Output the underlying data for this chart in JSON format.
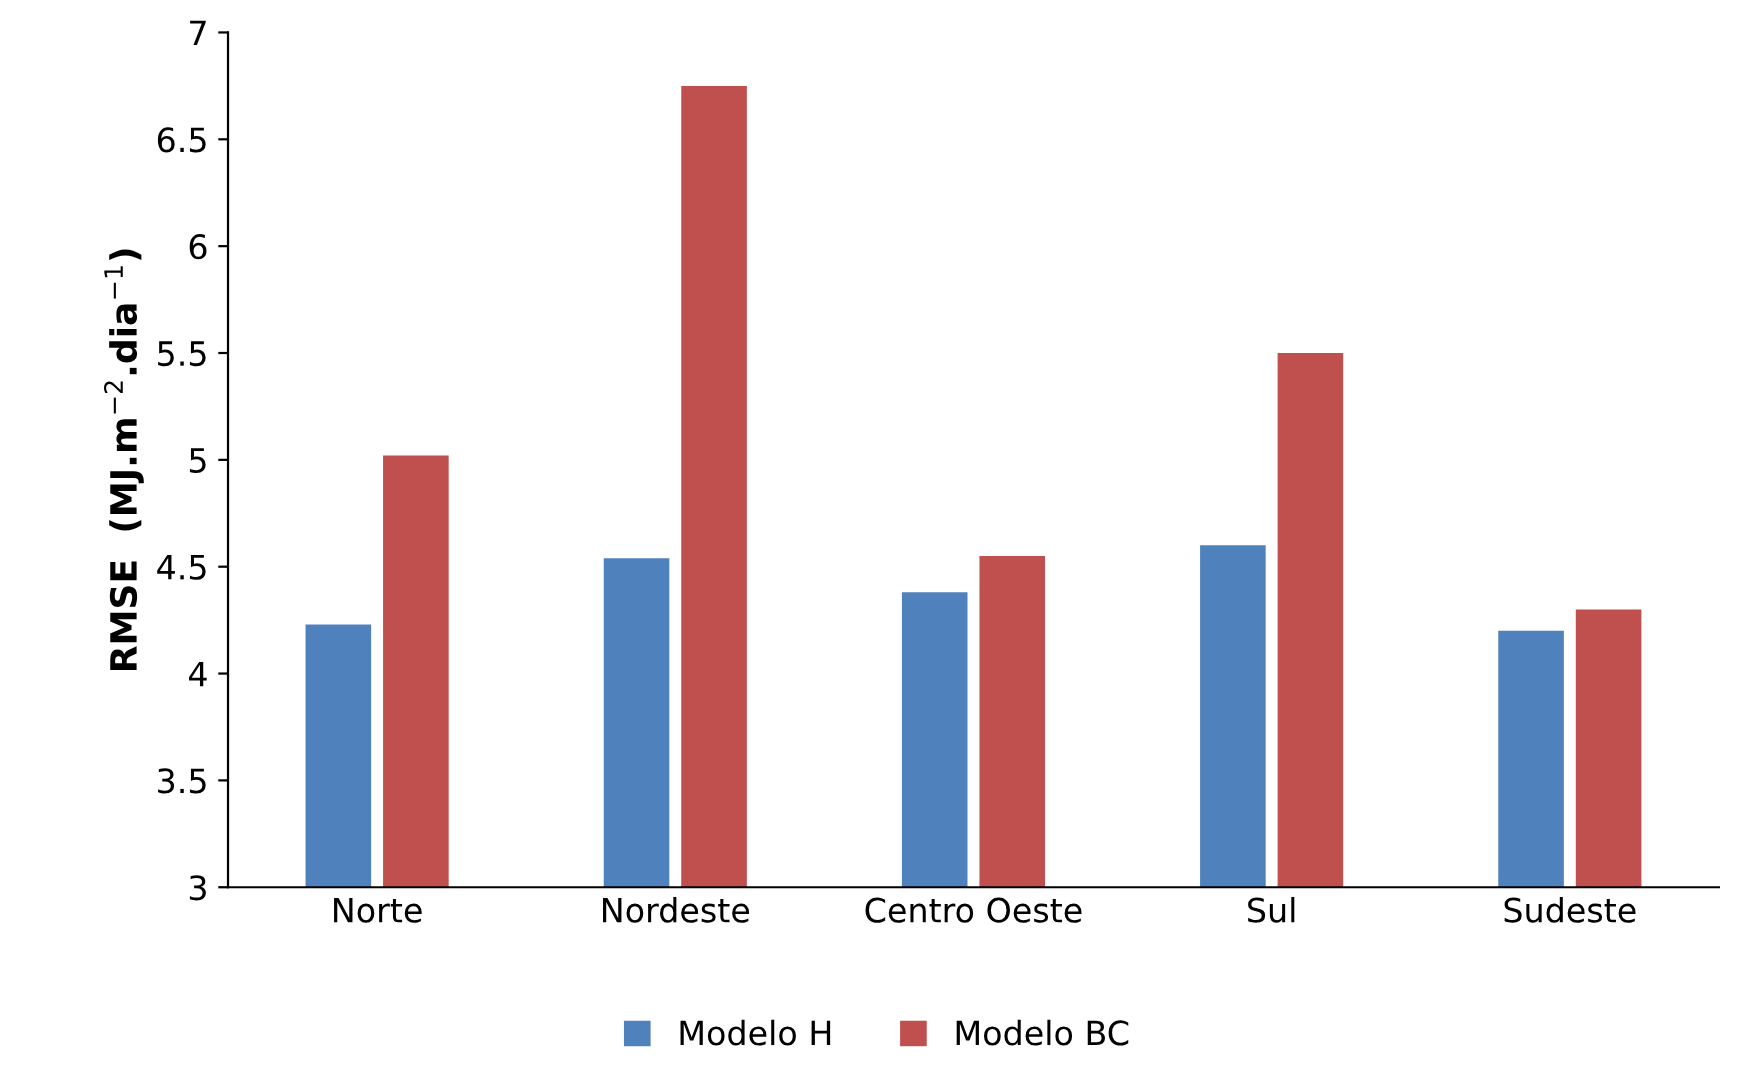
{
  "chart_data": {
    "type": "bar",
    "ylabel": "RMSE  (MJ.m$^{−2}$.dia$^{−1}$)",
    "categories": [
      "Norte",
      "Nordeste",
      "Centro Oeste",
      "Sul",
      "Sudeste"
    ],
    "series": [
      {
        "name": "Modelo H",
        "color": "#4f81bd",
        "values": [
          4.23,
          4.54,
          4.38,
          4.6,
          4.2
        ]
      },
      {
        "name": "Modelo BC",
        "color": "#c0504d",
        "values": [
          5.02,
          6.75,
          4.55,
          5.5,
          4.3
        ]
      }
    ],
    "ylim": [
      3,
      7
    ],
    "yticks": [
      3,
      3.5,
      4,
      4.5,
      5,
      5.5,
      6,
      6.5,
      7
    ],
    "grid": false,
    "legend": "bottom"
  }
}
